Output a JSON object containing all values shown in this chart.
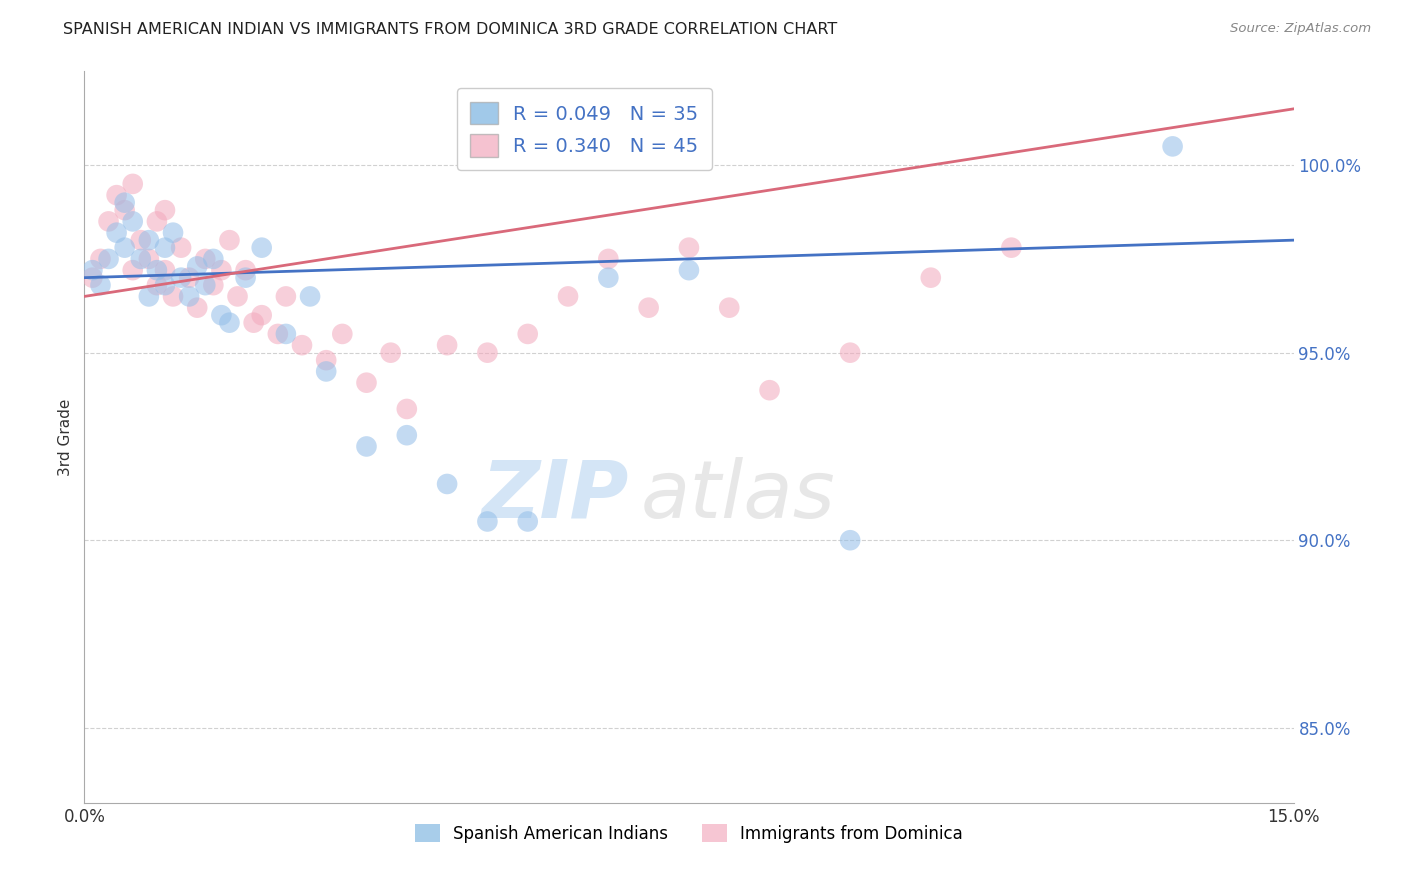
{
  "title": "SPANISH AMERICAN INDIAN VS IMMIGRANTS FROM DOMINICA 3RD GRADE CORRELATION CHART",
  "source": "Source: ZipAtlas.com",
  "ylabel": "3rd Grade",
  "xlim": [
    0.0,
    15.0
  ],
  "ylim": [
    83.0,
    102.5
  ],
  "yticks": [
    85.0,
    90.0,
    95.0,
    100.0
  ],
  "xticks": [
    0.0,
    5.0,
    10.0,
    15.0
  ],
  "xtick_labels": [
    "0.0%",
    "",
    "",
    "15.0%"
  ],
  "ytick_labels": [
    "85.0%",
    "90.0%",
    "95.0%",
    "100.0%"
  ],
  "series1_label": "Spanish American Indians",
  "series2_label": "Immigrants from Dominica",
  "series1_color": "#92bde8",
  "series2_color": "#f2a8bc",
  "series1_R": 0.049,
  "series1_N": 35,
  "series2_R": 0.34,
  "series2_N": 45,
  "legend_color_blue": "#7ab3e0",
  "legend_color_pink": "#f2a8bc",
  "regression_line1_color": "#4472c4",
  "regression_line2_color": "#d9697a",
  "watermark_zip": "ZIP",
  "watermark_atlas": "atlas",
  "background_color": "#ffffff",
  "series1_x": [
    0.1,
    0.2,
    0.3,
    0.4,
    0.5,
    0.5,
    0.6,
    0.7,
    0.8,
    0.8,
    0.9,
    1.0,
    1.0,
    1.1,
    1.2,
    1.3,
    1.4,
    1.5,
    1.6,
    1.7,
    1.8,
    2.0,
    2.2,
    2.5,
    2.8,
    3.0,
    3.5,
    4.0,
    4.5,
    5.0,
    5.5,
    6.5,
    7.5,
    9.5,
    13.5
  ],
  "series1_y": [
    97.2,
    96.8,
    97.5,
    98.2,
    97.8,
    99.0,
    98.5,
    97.5,
    98.0,
    96.5,
    97.2,
    97.8,
    96.8,
    98.2,
    97.0,
    96.5,
    97.3,
    96.8,
    97.5,
    96.0,
    95.8,
    97.0,
    97.8,
    95.5,
    96.5,
    94.5,
    92.5,
    92.8,
    91.5,
    90.5,
    90.5,
    97.0,
    97.2,
    90.0,
    100.5
  ],
  "series2_x": [
    0.1,
    0.2,
    0.3,
    0.4,
    0.5,
    0.6,
    0.6,
    0.7,
    0.8,
    0.9,
    0.9,
    1.0,
    1.0,
    1.1,
    1.2,
    1.3,
    1.4,
    1.5,
    1.6,
    1.7,
    1.8,
    1.9,
    2.0,
    2.1,
    2.2,
    2.4,
    2.5,
    2.7,
    3.0,
    3.2,
    3.5,
    3.8,
    4.0,
    4.5,
    5.0,
    5.5,
    6.0,
    6.5,
    7.0,
    7.5,
    8.0,
    8.5,
    9.5,
    10.5,
    11.5
  ],
  "series2_y": [
    97.0,
    97.5,
    98.5,
    99.2,
    98.8,
    97.2,
    99.5,
    98.0,
    97.5,
    96.8,
    98.5,
    97.2,
    98.8,
    96.5,
    97.8,
    97.0,
    96.2,
    97.5,
    96.8,
    97.2,
    98.0,
    96.5,
    97.2,
    95.8,
    96.0,
    95.5,
    96.5,
    95.2,
    94.8,
    95.5,
    94.2,
    95.0,
    93.5,
    95.2,
    95.0,
    95.5,
    96.5,
    97.5,
    96.2,
    97.8,
    96.2,
    94.0,
    95.0,
    97.0,
    97.8
  ],
  "reg1_x0": 0.0,
  "reg1_y0": 97.0,
  "reg1_x1": 15.0,
  "reg1_y1": 98.0,
  "reg2_x0": 0.0,
  "reg2_y0": 96.5,
  "reg2_x1": 15.0,
  "reg2_y1": 101.5
}
